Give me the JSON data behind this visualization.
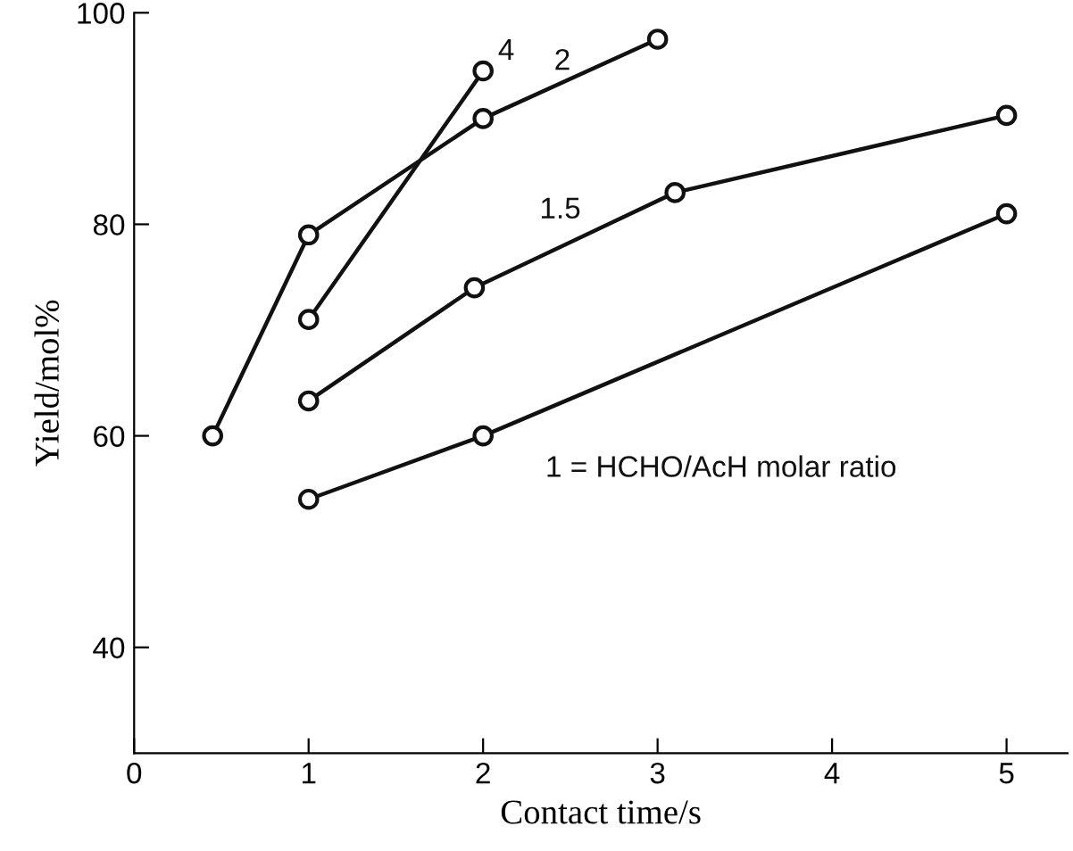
{
  "chart_data": {
    "type": "line",
    "xlabel": "Contact time/s",
    "ylabel": "Yield/mol%",
    "xlim": [
      0,
      5.35
    ],
    "ylim": [
      30,
      100
    ],
    "xticks": [
      0,
      1,
      2,
      3,
      4,
      5
    ],
    "yticks": [
      40,
      60,
      80,
      100
    ],
    "grid": false,
    "legend": false,
    "marker": "circle",
    "line_style": "solid",
    "series": [
      {
        "name": "4",
        "color": "#111111",
        "x": [
          1,
          2
        ],
        "values": [
          71,
          94.5
        ]
      },
      {
        "name": "2",
        "color": "#111111",
        "x": [
          0.45,
          1,
          2,
          3
        ],
        "values": [
          60,
          79,
          90,
          97.5
        ]
      },
      {
        "name": "1.5",
        "color": "#111111",
        "x": [
          1,
          1.95,
          3.1,
          5
        ],
        "values": [
          63.3,
          74,
          83,
          90.3
        ]
      },
      {
        "name": "1 = HCHO/AcH molar ratio",
        "color": "#111111",
        "x": [
          1,
          2,
          5
        ],
        "values": [
          54,
          60,
          81
        ]
      }
    ]
  }
}
